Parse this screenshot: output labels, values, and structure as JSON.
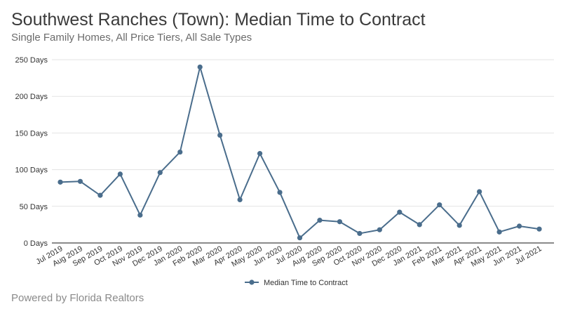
{
  "header": {
    "title": "Southwest Ranches (Town): Median Time to Contract",
    "subtitle": "Single Family Homes, All Price Tiers, All Sale Types"
  },
  "footer": {
    "text": "Powered by Florida Realtors"
  },
  "colors": {
    "series": "#4a6d8c",
    "grid": "#e3e3e3",
    "axis": "#444444"
  },
  "chart_data": {
    "type": "line",
    "title": "Southwest Ranches (Town): Median Time to Contract",
    "subtitle": "Single Family Homes, All Price Tiers, All Sale Types",
    "xlabel": "",
    "ylabel": "",
    "ylim": [
      0,
      250
    ],
    "y_ticks": [
      0,
      50,
      100,
      150,
      200,
      250
    ],
    "y_tick_labels": [
      "0 Days",
      "50 Days",
      "100 Days",
      "150 Days",
      "200 Days",
      "250 Days"
    ],
    "grid": true,
    "legend_position": "bottom",
    "categories": [
      "Jul 2019",
      "Aug 2019",
      "Sep 2019",
      "Oct 2019",
      "Nov 2019",
      "Dec 2019",
      "Jan 2020",
      "Feb 2020",
      "Mar 2020",
      "Apr 2020",
      "May 2020",
      "Jun 2020",
      "Jul 2020",
      "Aug 2020",
      "Sep 2020",
      "Oct 2020",
      "Nov 2020",
      "Dec 2020",
      "Jan 2021",
      "Feb 2021",
      "Mar 2021",
      "Apr 2021",
      "May 2021",
      "Jun 2021",
      "Jul 2021"
    ],
    "series": [
      {
        "name": "Median Time to Contract",
        "values": [
          83,
          84,
          65,
          94,
          38,
          96,
          124,
          240,
          147,
          59,
          122,
          69,
          7,
          31,
          29,
          13,
          18,
          42,
          25,
          52,
          24,
          70,
          15,
          23,
          19
        ]
      }
    ]
  }
}
